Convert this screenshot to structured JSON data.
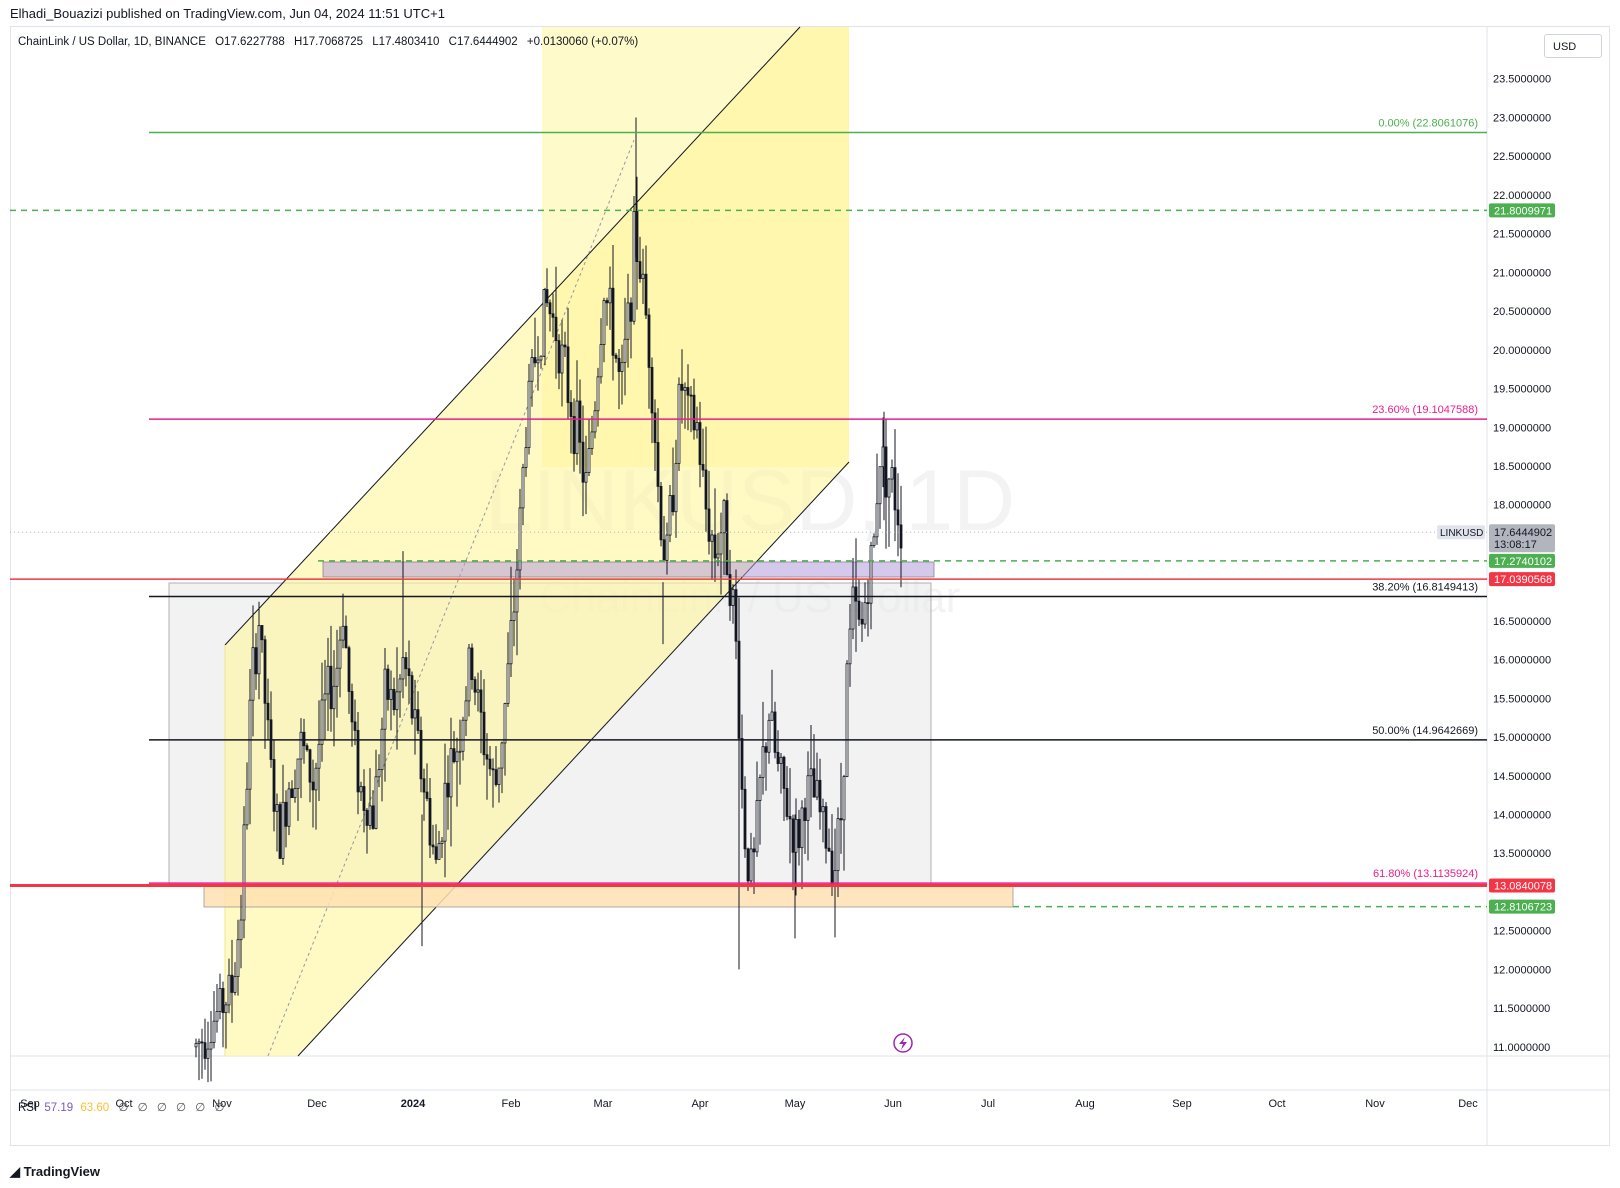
{
  "header": {
    "text": "Elhadi_Bouazizi published on TradingView.com, Jun 04, 2024 11:51 UTC+1"
  },
  "legend": {
    "symbol": "ChainLink / US Dollar, 1D, BINANCE",
    "open": "O17.6227788",
    "high": "H17.7068725",
    "low": "L17.4803410",
    "close": "C17.6444902",
    "change": "+0.0130060 (+0.07%)"
  },
  "currency": "USD",
  "watermark": {
    "line1": "LINKUSD, 1D",
    "line2": "ChainLink / US Dollar"
  },
  "colors": {
    "green": "#4caf50",
    "red": "#f23645",
    "magenta": "#e91e8c",
    "black": "#131722",
    "yellow": "#fff59d",
    "gray": "#9598a1"
  },
  "chart_data": {
    "type": "candlestick",
    "symbol": "LINKUSD",
    "timeframe": "1D",
    "ylim": [
      10.9,
      24.0
    ],
    "y_ticks": [
      "23.5000000",
      "23.0000000",
      "22.5000000",
      "22.0000000",
      "21.5000000",
      "21.0000000",
      "20.5000000",
      "20.0000000",
      "19.5000000",
      "19.0000000",
      "18.5000000",
      "18.0000000",
      "16.5000000",
      "16.0000000",
      "15.5000000",
      "15.0000000",
      "14.5000000",
      "14.0000000",
      "13.5000000",
      "12.5000000",
      "12.0000000",
      "11.5000000",
      "11.0000000"
    ],
    "x_ticks": [
      "Sep",
      "Oct",
      "Nov",
      "Dec",
      "2024",
      "Feb",
      "Mar",
      "Apr",
      "May",
      "Jun",
      "Jul",
      "Aug",
      "Sep",
      "Oct",
      "Nov",
      "Dec"
    ],
    "price_tags": [
      {
        "label": "21.8009971",
        "value": 21.8009971,
        "color": "#4caf50",
        "style": "dashed"
      },
      {
        "label": "17.2740102",
        "value": 17.2740102,
        "color": "#4caf50",
        "style": "dashed"
      },
      {
        "label": "17.0390568",
        "value": 17.0390568,
        "color": "#f23645",
        "style": "solid"
      },
      {
        "label": "13.0840078",
        "value": 13.0840078,
        "color": "#f23645",
        "style": "solid"
      },
      {
        "label": "12.8106723",
        "value": 12.8106723,
        "color": "#4caf50",
        "style": "dashed"
      }
    ],
    "current_price": {
      "label": "17.6444902",
      "countdown": "13:08:17",
      "name": "LINKUSD",
      "value": 17.6444902
    },
    "fibonacci": [
      {
        "label": "0.00% (22.8061076)",
        "value": 22.8061076,
        "color": "#4caf50"
      },
      {
        "label": "23.60% (19.1047588)",
        "value": 19.1047588,
        "color": "#e91e8c"
      },
      {
        "label": "38.20% (16.8149413)",
        "value": 16.8149413,
        "color": "#131722"
      },
      {
        "label": "50.00% (14.9642669)",
        "value": 14.9642669,
        "color": "#131722"
      },
      {
        "label": "61.80% (13.1135924)",
        "value": 13.1135924,
        "color": "#e91e8c"
      }
    ]
  },
  "rsi": {
    "label": "RSI",
    "value1": "57.19",
    "value2": "63.60",
    "icons": [
      "∅",
      "∅",
      "∅",
      "∅",
      "∅",
      "∅"
    ]
  },
  "footer": {
    "logo_text": "TradingView"
  }
}
